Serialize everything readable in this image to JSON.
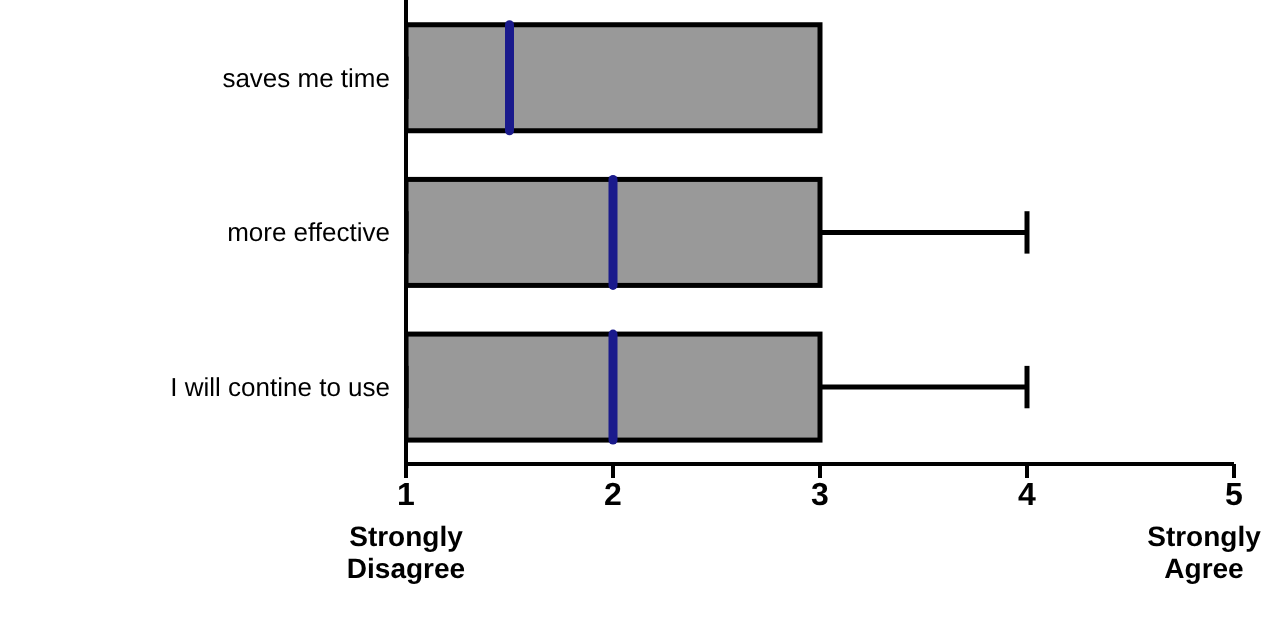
{
  "chart_data": {
    "type": "box",
    "orientation": "horizontal",
    "categories": [
      "saves me time",
      "more effective",
      "I will contine to use"
    ],
    "boxes": [
      {
        "low": 1,
        "q1": 1,
        "median": 1.5,
        "q3": 3,
        "high": 3
      },
      {
        "low": 1,
        "q1": 1,
        "median": 2,
        "q3": 3,
        "high": 4
      },
      {
        "low": 1,
        "q1": 1,
        "median": 2,
        "q3": 3,
        "high": 4
      }
    ],
    "color": "#999999",
    "xlim": [
      1,
      5
    ],
    "xticks": [
      1,
      2,
      3,
      4,
      5
    ],
    "annotations": [
      "Strongly Disagree",
      "Strongly Agree"
    ]
  }
}
